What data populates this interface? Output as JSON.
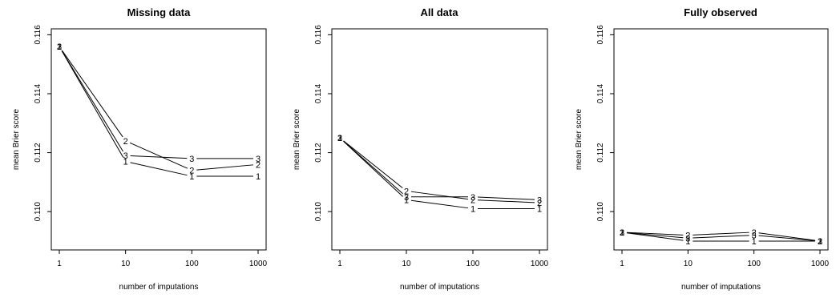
{
  "chart_data": [
    {
      "type": "line",
      "title": "Missing data",
      "xlabel": "number of imputations",
      "ylabel": "mean Brier score",
      "x": [
        1,
        10,
        100,
        1000
      ],
      "x_scale": "log",
      "x_tick_labels": [
        "1",
        "10",
        "100",
        "1000"
      ],
      "ylim": [
        0.1087,
        0.1162
      ],
      "y_ticks": [
        0.11,
        0.112,
        0.114,
        0.116
      ],
      "y_tick_labels": [
        "0.110",
        "0.112",
        "0.114",
        "0.116"
      ],
      "series": [
        {
          "name": "1",
          "values": [
            0.1156,
            0.1117,
            0.1112,
            0.1112
          ]
        },
        {
          "name": "2",
          "values": [
            0.1156,
            0.1124,
            0.1114,
            0.1116
          ]
        },
        {
          "name": "3",
          "values": [
            0.1156,
            0.1119,
            0.1118,
            0.1118
          ]
        }
      ]
    },
    {
      "type": "line",
      "title": "All data",
      "xlabel": "number of imputations",
      "ylabel": "mean Brier score",
      "x": [
        1,
        10,
        100,
        1000
      ],
      "x_scale": "log",
      "x_tick_labels": [
        "1",
        "10",
        "100",
        "1000"
      ],
      "ylim": [
        0.1087,
        0.1162
      ],
      "y_ticks": [
        0.11,
        0.112,
        0.114,
        0.116
      ],
      "y_tick_labels": [
        "0.110",
        "0.112",
        "0.114",
        "0.116"
      ],
      "series": [
        {
          "name": "1",
          "values": [
            0.1125,
            0.1104,
            0.1101,
            0.1101
          ]
        },
        {
          "name": "2",
          "values": [
            0.1125,
            0.1107,
            0.1104,
            0.1103
          ]
        },
        {
          "name": "3",
          "values": [
            0.1125,
            0.1105,
            0.1105,
            0.1104
          ]
        }
      ]
    },
    {
      "type": "line",
      "title": "Fully observed",
      "xlabel": "number of imputations",
      "ylabel": "mean Brier score",
      "x": [
        1,
        10,
        100,
        1000
      ],
      "x_scale": "log",
      "x_tick_labels": [
        "1",
        "10",
        "100",
        "1000"
      ],
      "ylim": [
        0.1087,
        0.1162
      ],
      "y_ticks": [
        0.11,
        0.112,
        0.114,
        0.116
      ],
      "y_tick_labels": [
        "0.110",
        "0.112",
        "0.114",
        "0.116"
      ],
      "series": [
        {
          "name": "1",
          "values": [
            0.1093,
            0.109,
            0.109,
            0.109
          ]
        },
        {
          "name": "2",
          "values": [
            0.1093,
            0.1092,
            0.1093,
            0.109
          ]
        },
        {
          "name": "3",
          "values": [
            0.1093,
            0.1091,
            0.1092,
            0.109
          ]
        }
      ]
    }
  ]
}
